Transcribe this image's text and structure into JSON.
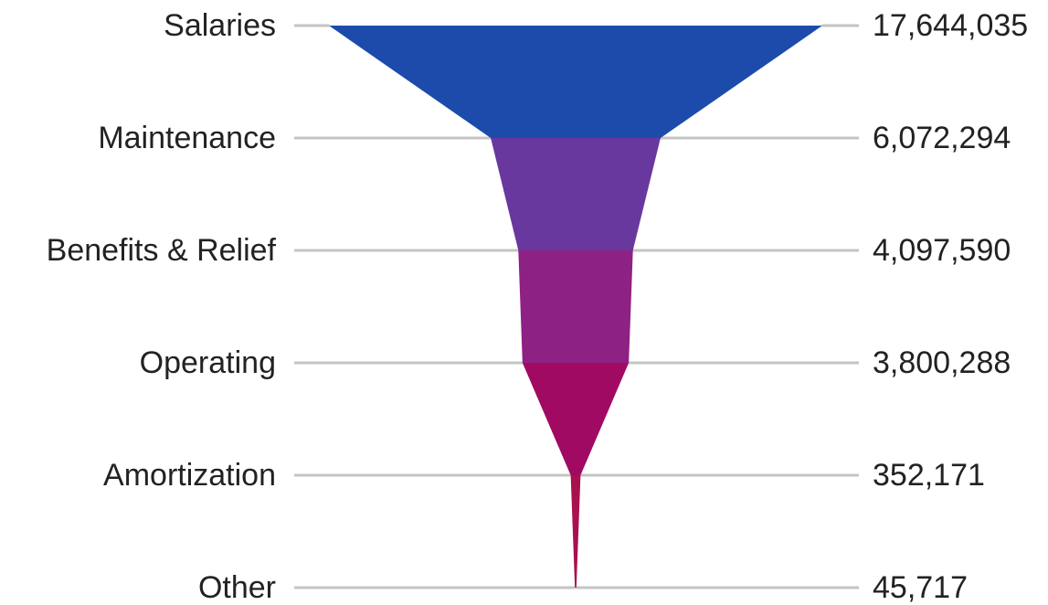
{
  "chart_data": {
    "type": "funnel",
    "title": "",
    "stages": [
      {
        "label": "Salaries",
        "value": 17644035,
        "value_label": "17,644,035",
        "color": "#1c4bab"
      },
      {
        "label": "Maintenance",
        "value": 6072294,
        "value_label": "6,072,294",
        "color": "#68389e"
      },
      {
        "label": "Benefits & Relief",
        "value": 4097590,
        "value_label": "4,097,590",
        "color": "#8d2184"
      },
      {
        "label": "Operating",
        "value": 3800288,
        "value_label": "3,800,288",
        "color": "#a10a62"
      },
      {
        "label": "Amortization",
        "value": 352171,
        "value_label": "352,171",
        "color": "#a8104e"
      },
      {
        "label": "Other",
        "value": 45717,
        "value_label": "45,717",
        "color": "#a8104e"
      }
    ],
    "grid_line_color": "#c4c4c4",
    "text_color": "#222222"
  }
}
